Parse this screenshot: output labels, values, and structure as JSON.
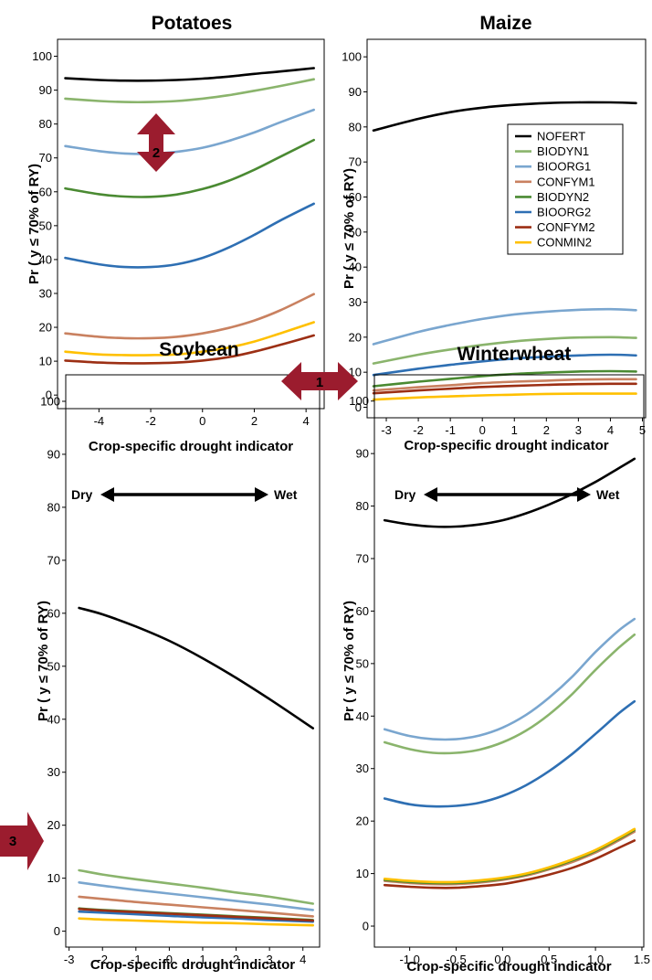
{
  "chart_data": [
    {
      "type": "line",
      "title": "Potatoes",
      "xlabel": "Crop-specific drought indicator",
      "ylabel": "Pr ( y ≤ 70% of RY)",
      "xlim": [
        -5.6,
        4.7
      ],
      "ylim": [
        -4,
        105
      ],
      "xticks": [
        -4,
        -2,
        0,
        2,
        4
      ],
      "yticks": [
        0,
        10,
        20,
        30,
        40,
        50,
        60,
        70,
        80,
        90,
        100
      ],
      "x": [
        -5.3,
        -4,
        -3,
        -2,
        -1,
        0,
        1,
        2,
        3,
        4.3
      ],
      "series": [
        {
          "name": "NOFERT",
          "color": "#000000",
          "values": [
            93.5,
            93,
            92.8,
            92.8,
            93,
            93.4,
            94,
            94.8,
            95.5,
            96.5
          ]
        },
        {
          "name": "BIODYN1",
          "color": "#8ab46c",
          "values": [
            87.5,
            86.8,
            86.5,
            86.5,
            86.8,
            87.5,
            88.5,
            89.8,
            91.2,
            93.2
          ]
        },
        {
          "name": "BIOORG1",
          "color": "#7aa6cf",
          "values": [
            73.5,
            72,
            71.3,
            71.2,
            71.8,
            73,
            75,
            77.5,
            80.5,
            84.2
          ]
        },
        {
          "name": "CONFYM1",
          "color": "#c98160",
          "values": [
            18.2,
            17.2,
            16.8,
            16.8,
            17.2,
            18.2,
            19.8,
            22,
            25,
            29.8
          ]
        },
        {
          "name": "BIODYN2",
          "color": "#4a8a32",
          "values": [
            61,
            59.3,
            58.6,
            58.5,
            59.2,
            60.8,
            63.2,
            66.5,
            70.3,
            75.3
          ]
        },
        {
          "name": "BIOORG2",
          "color": "#2e6fb3",
          "values": [
            40.5,
            38.6,
            37.8,
            37.8,
            38.6,
            40.5,
            43.5,
            47.3,
            51.5,
            56.5
          ]
        },
        {
          "name": "CONFYM2",
          "color": "#9c2f14",
          "values": [
            10.2,
            9.6,
            9.4,
            9.4,
            9.6,
            10.2,
            11.2,
            12.8,
            14.8,
            17.6
          ]
        },
        {
          "name": "CONMIN2",
          "color": "#ffc000",
          "values": [
            12.8,
            12,
            11.8,
            11.8,
            12,
            12.8,
            14,
            15.8,
            18.2,
            21.5
          ]
        }
      ]
    },
    {
      "type": "line",
      "title": "Maize",
      "xlabel": "Crop-specific drought indicator",
      "ylabel": "Pr ( y ≤ 70% of RY)",
      "xlim": [
        -3.6,
        5.1
      ],
      "ylim": [
        -3,
        105
      ],
      "xticks": [
        -3,
        -2,
        -1,
        0,
        1,
        2,
        3,
        4,
        5
      ],
      "yticks": [
        0,
        10,
        20,
        30,
        40,
        50,
        60,
        70,
        80,
        90,
        100
      ],
      "x": [
        -3.4,
        -2,
        -1,
        0,
        1,
        2,
        3,
        4,
        4.8
      ],
      "series": [
        {
          "name": "NOFERT",
          "color": "#000000",
          "values": [
            79,
            82.3,
            84.2,
            85.5,
            86.3,
            86.8,
            87,
            87,
            86.8
          ]
        },
        {
          "name": "BIODYN1",
          "color": "#8ab46c",
          "values": [
            12.5,
            15,
            16.5,
            17.8,
            18.8,
            19.5,
            19.9,
            20,
            19.8
          ]
        },
        {
          "name": "BIOORG1",
          "color": "#7aa6cf",
          "values": [
            18,
            21.5,
            23.5,
            25.2,
            26.5,
            27.3,
            27.8,
            28,
            27.7
          ]
        },
        {
          "name": "CONFYM1",
          "color": "#c98160",
          "values": [
            4.8,
            5.7,
            6.3,
            6.9,
            7.3,
            7.6,
            7.9,
            8,
            8
          ]
        },
        {
          "name": "BIODYN2",
          "color": "#4a8a32",
          "values": [
            6,
            7.3,
            8.1,
            8.9,
            9.5,
            9.9,
            10.2,
            10.3,
            10.2
          ]
        },
        {
          "name": "BIOORG2",
          "color": "#2e6fb3",
          "values": [
            9.2,
            11,
            12.1,
            13.1,
            13.9,
            14.4,
            14.8,
            15,
            14.8
          ]
        },
        {
          "name": "CONFYM2",
          "color": "#9c2f14",
          "values": [
            4,
            4.8,
            5.3,
            5.8,
            6.1,
            6.4,
            6.6,
            6.7,
            6.7
          ]
        },
        {
          "name": "CONMIN2",
          "color": "#ffc000",
          "values": [
            2.2,
            2.8,
            3.1,
            3.4,
            3.6,
            3.8,
            3.9,
            3.9,
            3.9
          ]
        }
      ],
      "legend": "top-right"
    },
    {
      "type": "line",
      "title": "Soybean",
      "xlabel": "Crop-specific drought indicator",
      "ylabel": "Pr ( y ≤ 70% of RY)",
      "xlim": [
        -3.1,
        4.5
      ],
      "ylim": [
        -3,
        105
      ],
      "xticks": [
        -3,
        -2,
        -1,
        0,
        1,
        2,
        3,
        4
      ],
      "yticks": [
        0,
        10,
        20,
        30,
        40,
        50,
        60,
        70,
        80,
        90,
        100
      ],
      "x": [
        -2.7,
        -2,
        -1,
        0,
        1,
        2,
        3,
        4.3
      ],
      "series": [
        {
          "name": "NOFERT",
          "color": "#000000",
          "values": [
            61,
            59.8,
            57.5,
            54.8,
            51.5,
            47.8,
            43.8,
            38.3
          ]
        },
        {
          "name": "BIODYN1",
          "color": "#8ab46c",
          "values": [
            11.5,
            10.7,
            9.8,
            9,
            8.2,
            7.3,
            6.5,
            5.2
          ]
        },
        {
          "name": "BIOORG1",
          "color": "#7aa6cf",
          "values": [
            9.2,
            8.6,
            7.8,
            7.1,
            6.4,
            5.7,
            5,
            4
          ]
        },
        {
          "name": "CONFYM1",
          "color": "#c98160",
          "values": [
            6.5,
            6.1,
            5.5,
            5,
            4.5,
            4,
            3.5,
            2.8
          ]
        },
        {
          "name": "BIODYN2",
          "color": "#4a8a32",
          "values": [
            4.3,
            4,
            3.7,
            3.4,
            3.1,
            2.8,
            2.5,
            2.1
          ]
        },
        {
          "name": "BIOORG2",
          "color": "#2e6fb3",
          "values": [
            3.7,
            3.5,
            3.2,
            2.9,
            2.6,
            2.4,
            2.1,
            1.8
          ]
        },
        {
          "name": "CONFYM2",
          "color": "#9c2f14",
          "values": [
            4.2,
            3.9,
            3.6,
            3.3,
            3,
            2.7,
            2.4,
            2
          ]
        },
        {
          "name": "CONMIN2",
          "color": "#ffc000",
          "values": [
            2.4,
            2.2,
            2,
            1.8,
            1.6,
            1.5,
            1.3,
            1.1
          ]
        }
      ]
    },
    {
      "type": "line",
      "title": "Winterwheat",
      "xlabel": "Crop-specific drought indicator",
      "ylabel": "Pr ( y ≤ 70% of RY)",
      "xlim": [
        -1.38,
        1.52
      ],
      "ylim": [
        -4,
        105
      ],
      "xticks": [
        -1.0,
        -0.5,
        0.0,
        0.5,
        1.0,
        1.5
      ],
      "xticklabels": [
        "-1.0",
        "-0.5",
        "0.0",
        "0.5",
        "1.0",
        "1.5"
      ],
      "yticks": [
        0,
        10,
        20,
        30,
        40,
        50,
        60,
        70,
        80,
        90,
        100
      ],
      "x": [
        -1.27,
        -1,
        -0.75,
        -0.5,
        -0.25,
        0,
        0.25,
        0.5,
        0.75,
        1,
        1.25,
        1.42
      ],
      "series": [
        {
          "name": "NOFERT",
          "color": "#000000",
          "values": [
            77.3,
            76.5,
            76.1,
            76.1,
            76.5,
            77.3,
            78.6,
            80.3,
            82.3,
            84.6,
            87.2,
            89
          ]
        },
        {
          "name": "BIODYN1",
          "color": "#8ab46c",
          "values": [
            35,
            33.7,
            33,
            33,
            33.6,
            35,
            37.2,
            40.3,
            44.2,
            48.8,
            53,
            55.5
          ]
        },
        {
          "name": "BIOORG1",
          "color": "#7aa6cf",
          "values": [
            37.5,
            36.2,
            35.6,
            35.6,
            36.3,
            37.8,
            40.2,
            43.5,
            47.5,
            52.2,
            56.3,
            58.5
          ]
        },
        {
          "name": "CONFYM1",
          "color": "#c98160",
          "values": [
            8.6,
            8.2,
            8,
            8,
            8.3,
            8.8,
            9.6,
            10.8,
            12.2,
            14,
            16.3,
            18
          ]
        },
        {
          "name": "BIODYN2",
          "color": "#4a8a32",
          "values": [
            8.8,
            8.4,
            8.2,
            8.2,
            8.5,
            9,
            9.8,
            11,
            12.5,
            14.3,
            16.6,
            18.3
          ]
        },
        {
          "name": "BIOORG2",
          "color": "#2e6fb3",
          "values": [
            24.3,
            23.2,
            22.8,
            22.9,
            23.5,
            24.8,
            26.8,
            29.5,
            32.8,
            36.6,
            40.5,
            42.8
          ]
        },
        {
          "name": "CONFYM2",
          "color": "#9c2f14",
          "values": [
            7.8,
            7.5,
            7.3,
            7.3,
            7.6,
            8,
            8.8,
            9.8,
            11.1,
            12.8,
            14.9,
            16.3
          ]
        },
        {
          "name": "CONMIN2",
          "color": "#ffc000",
          "values": [
            9,
            8.6,
            8.4,
            8.4,
            8.7,
            9.2,
            10,
            11.2,
            12.7,
            14.5,
            16.8,
            18.5
          ]
        }
      ]
    }
  ],
  "annotations": {
    "markers": [
      "2",
      "1",
      "3"
    ],
    "dry_label": "Dry",
    "wet_label": "Wet",
    "marker_color": "#9b1c2e"
  }
}
